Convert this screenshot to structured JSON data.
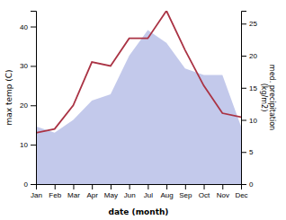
{
  "chart_data": {
    "type": "line",
    "categories": [
      "Jan",
      "Feb",
      "Mar",
      "Apr",
      "May",
      "Jun",
      "Jul",
      "Aug",
      "Sep",
      "Oct",
      "Nov",
      "Dec"
    ],
    "series": [
      {
        "type": "line",
        "color": "#aa3344",
        "values": [
          13,
          14,
          20,
          31,
          30,
          37,
          37,
          44,
          34,
          25,
          18,
          17
        ]
      },
      {
        "type": "area",
        "axis": "y2",
        "color": "#b8c0e8",
        "values": [
          9,
          8,
          10,
          13,
          14,
          20,
          24,
          22,
          18,
          17,
          17,
          9
        ]
      }
    ],
    "xlabel": "date (month)",
    "ylabel": "max temp (C)",
    "y2label": "med. precipitation\n(kg/m2)",
    "ylim": [
      0,
      44
    ],
    "yticks": [
      0,
      10,
      20,
      30,
      40
    ],
    "y2lim": [
      0,
      27
    ],
    "y2ticks": [
      0,
      5,
      10,
      15,
      20,
      25
    ],
    "grid": false
  }
}
